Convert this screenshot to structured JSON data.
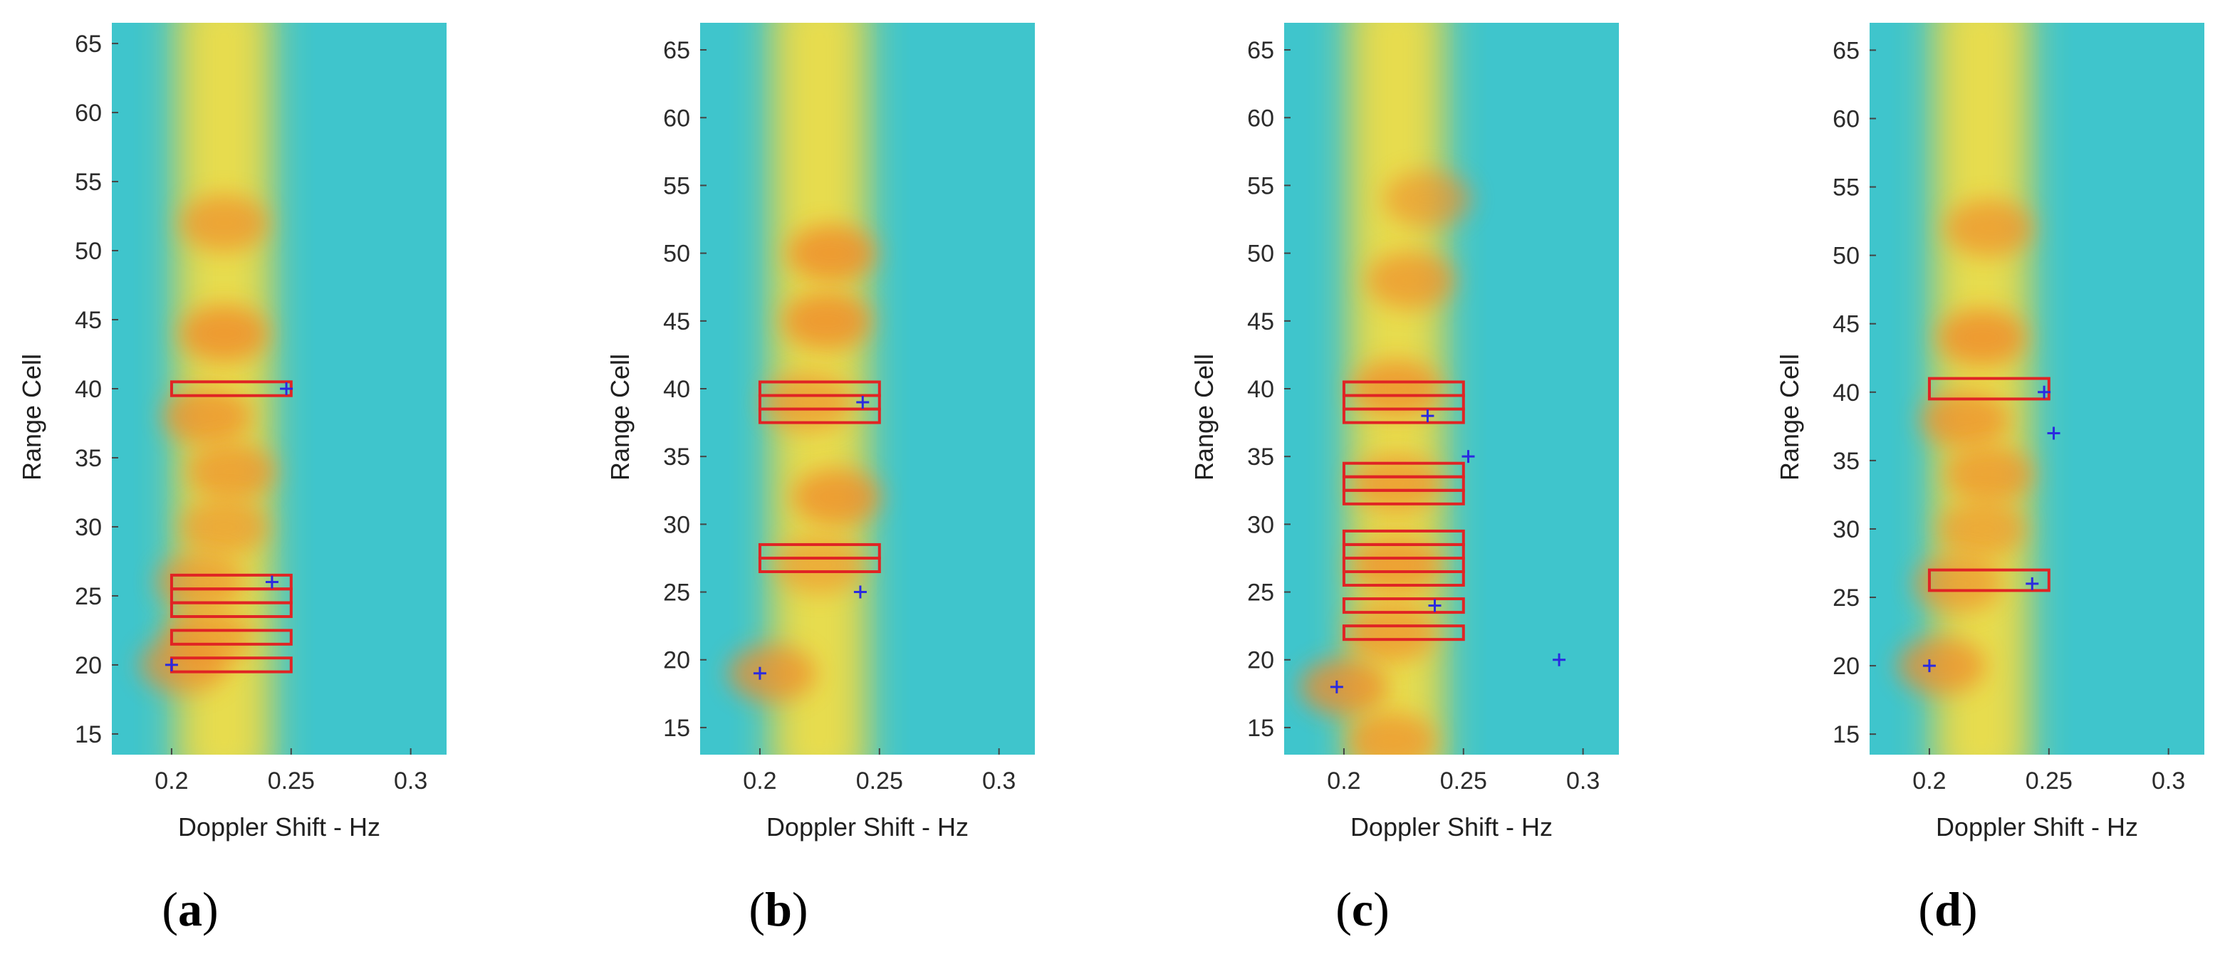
{
  "colors": {
    "background": "#3fc5cc",
    "hot": "#f08c2a",
    "warm": "#f3d63a",
    "box": "#e02424",
    "marker": "#2a2ae0"
  },
  "chart_data": [
    {
      "type": "heatmap",
      "panel_label": {
        "open": "(",
        "letter": "a",
        "close": ")"
      },
      "xlabel": "Doppler Shift - Hz",
      "ylabel": "Range Cell",
      "xlim": [
        0.175,
        0.315
      ],
      "ylim": [
        13.5,
        66.5
      ],
      "xticks": [
        0.2,
        0.25,
        0.3
      ],
      "xtick_labels": [
        "0.2",
        "0.25",
        "0.3"
      ],
      "yticks": [
        15,
        20,
        25,
        30,
        35,
        40,
        45,
        50,
        55,
        60,
        65
      ],
      "ytick_labels": [
        "15",
        "20",
        "25",
        "30",
        "35",
        "40",
        "45",
        "50",
        "55",
        "60",
        "65"
      ],
      "ridge_center": 0.222,
      "blobs": [
        {
          "x": 0.222,
          "y": 52,
          "strength": 0.85
        },
        {
          "x": 0.222,
          "y": 44,
          "strength": 1.0
        },
        {
          "x": 0.215,
          "y": 38,
          "strength": 0.9
        },
        {
          "x": 0.225,
          "y": 34,
          "strength": 0.85
        },
        {
          "x": 0.222,
          "y": 30,
          "strength": 0.75
        },
        {
          "x": 0.212,
          "y": 26,
          "strength": 0.8
        },
        {
          "x": 0.215,
          "y": 22,
          "strength": 0.8
        },
        {
          "x": 0.205,
          "y": 20,
          "strength": 0.85
        }
      ],
      "boxes": [
        {
          "x0": 0.2,
          "x1": 0.25,
          "y0": 39.5,
          "y1": 40.5
        },
        {
          "x0": 0.2,
          "x1": 0.25,
          "y0": 25.5,
          "y1": 26.5
        },
        {
          "x0": 0.2,
          "x1": 0.25,
          "y0": 24.5,
          "y1": 25.5
        },
        {
          "x0": 0.2,
          "x1": 0.25,
          "y0": 23.5,
          "y1": 24.5
        },
        {
          "x0": 0.2,
          "x1": 0.25,
          "y0": 21.5,
          "y1": 22.5
        },
        {
          "x0": 0.2,
          "x1": 0.25,
          "y0": 19.5,
          "y1": 20.5
        }
      ],
      "markers": [
        {
          "x": 0.248,
          "y": 40
        },
        {
          "x": 0.242,
          "y": 26
        },
        {
          "x": 0.2,
          "y": 20
        }
      ]
    },
    {
      "type": "heatmap",
      "panel_label": {
        "open": "(",
        "letter": "b",
        "close": ")"
      },
      "xlabel": "Doppler Shift - Hz",
      "ylabel": "Range Cell",
      "xlim": [
        0.175,
        0.315
      ],
      "ylim": [
        13,
        67
      ],
      "xticks": [
        0.2,
        0.25,
        0.3
      ],
      "xtick_labels": [
        "0.2",
        "0.25",
        "0.3"
      ],
      "yticks": [
        15,
        20,
        25,
        30,
        35,
        40,
        45,
        50,
        55,
        60,
        65
      ],
      "ytick_labels": [
        "15",
        "20",
        "25",
        "30",
        "35",
        "40",
        "45",
        "50",
        "55",
        "60",
        "65"
      ],
      "ridge_center": 0.225,
      "blobs": [
        {
          "x": 0.23,
          "y": 50,
          "strength": 1.0
        },
        {
          "x": 0.228,
          "y": 45,
          "strength": 1.0
        },
        {
          "x": 0.22,
          "y": 39,
          "strength": 0.8
        },
        {
          "x": 0.232,
          "y": 32,
          "strength": 0.95
        },
        {
          "x": 0.225,
          "y": 27,
          "strength": 0.7
        },
        {
          "x": 0.205,
          "y": 19,
          "strength": 0.9
        }
      ],
      "boxes": [
        {
          "x0": 0.2,
          "x1": 0.25,
          "y0": 39.5,
          "y1": 40.5
        },
        {
          "x0": 0.2,
          "x1": 0.25,
          "y0": 38.5,
          "y1": 39.5
        },
        {
          "x0": 0.2,
          "x1": 0.25,
          "y0": 37.5,
          "y1": 38.5
        },
        {
          "x0": 0.2,
          "x1": 0.25,
          "y0": 27.5,
          "y1": 28.5
        },
        {
          "x0": 0.2,
          "x1": 0.25,
          "y0": 26.5,
          "y1": 27.5
        }
      ],
      "markers": [
        {
          "x": 0.243,
          "y": 39
        },
        {
          "x": 0.242,
          "y": 25
        },
        {
          "x": 0.2,
          "y": 19
        }
      ]
    },
    {
      "type": "heatmap",
      "panel_label": {
        "open": "(",
        "letter": "c",
        "close": ")"
      },
      "xlabel": "Doppler Shift - Hz",
      "ylabel": "Range Cell",
      "xlim": [
        0.175,
        0.315
      ],
      "ylim": [
        13,
        67
      ],
      "xticks": [
        0.2,
        0.25,
        0.3
      ],
      "xtick_labels": [
        "0.2",
        "0.25",
        "0.3"
      ],
      "yticks": [
        15,
        20,
        25,
        30,
        35,
        40,
        45,
        50,
        55,
        60,
        65
      ],
      "ytick_labels": [
        "15",
        "20",
        "25",
        "30",
        "35",
        "40",
        "45",
        "50",
        "55",
        "60",
        "65"
      ],
      "ridge_center": 0.222,
      "blobs": [
        {
          "x": 0.235,
          "y": 54,
          "strength": 0.75
        },
        {
          "x": 0.228,
          "y": 48,
          "strength": 0.85
        },
        {
          "x": 0.222,
          "y": 40,
          "strength": 0.95
        },
        {
          "x": 0.222,
          "y": 33,
          "strength": 0.85
        },
        {
          "x": 0.222,
          "y": 27,
          "strength": 0.9
        },
        {
          "x": 0.22,
          "y": 22,
          "strength": 0.85
        },
        {
          "x": 0.2,
          "y": 18,
          "strength": 0.95
        },
        {
          "x": 0.22,
          "y": 14,
          "strength": 0.85
        }
      ],
      "boxes": [
        {
          "x0": 0.2,
          "x1": 0.25,
          "y0": 39.5,
          "y1": 40.5
        },
        {
          "x0": 0.2,
          "x1": 0.25,
          "y0": 38.5,
          "y1": 39.5
        },
        {
          "x0": 0.2,
          "x1": 0.25,
          "y0": 37.5,
          "y1": 38.5
        },
        {
          "x0": 0.2,
          "x1": 0.25,
          "y0": 33.5,
          "y1": 34.5
        },
        {
          "x0": 0.2,
          "x1": 0.25,
          "y0": 32.5,
          "y1": 33.5
        },
        {
          "x0": 0.2,
          "x1": 0.25,
          "y0": 31.5,
          "y1": 32.5
        },
        {
          "x0": 0.2,
          "x1": 0.25,
          "y0": 28.5,
          "y1": 29.5
        },
        {
          "x0": 0.2,
          "x1": 0.25,
          "y0": 27.5,
          "y1": 28.5
        },
        {
          "x0": 0.2,
          "x1": 0.25,
          "y0": 26.5,
          "y1": 27.5
        },
        {
          "x0": 0.2,
          "x1": 0.25,
          "y0": 25.5,
          "y1": 26.5
        },
        {
          "x0": 0.2,
          "x1": 0.25,
          "y0": 23.5,
          "y1": 24.5
        },
        {
          "x0": 0.2,
          "x1": 0.25,
          "y0": 21.5,
          "y1": 22.5
        }
      ],
      "markers": [
        {
          "x": 0.235,
          "y": 38
        },
        {
          "x": 0.252,
          "y": 35
        },
        {
          "x": 0.238,
          "y": 24
        },
        {
          "x": 0.29,
          "y": 20
        },
        {
          "x": 0.197,
          "y": 18
        }
      ]
    },
    {
      "type": "heatmap",
      "panel_label": {
        "open": "(",
        "letter": "d",
        "close": ")"
      },
      "xlabel": "Doppler Shift - Hz",
      "ylabel": "Range Cell",
      "xlim": [
        0.175,
        0.315
      ],
      "ylim": [
        13.5,
        67
      ],
      "xticks": [
        0.2,
        0.25,
        0.3
      ],
      "xtick_labels": [
        "0.2",
        "0.25",
        "0.3"
      ],
      "yticks": [
        15,
        20,
        25,
        30,
        35,
        40,
        45,
        50,
        55,
        60,
        65
      ],
      "ytick_labels": [
        "15",
        "20",
        "25",
        "30",
        "35",
        "40",
        "45",
        "50",
        "55",
        "60",
        "65"
      ],
      "ridge_center": 0.222,
      "blobs": [
        {
          "x": 0.225,
          "y": 52,
          "strength": 0.85
        },
        {
          "x": 0.222,
          "y": 44,
          "strength": 1.0
        },
        {
          "x": 0.215,
          "y": 38,
          "strength": 0.9
        },
        {
          "x": 0.225,
          "y": 34,
          "strength": 0.85
        },
        {
          "x": 0.222,
          "y": 30,
          "strength": 0.75
        },
        {
          "x": 0.212,
          "y": 26,
          "strength": 0.8
        },
        {
          "x": 0.205,
          "y": 20,
          "strength": 0.9
        }
      ],
      "boxes": [
        {
          "x0": 0.2,
          "x1": 0.25,
          "y0": 39.5,
          "y1": 41
        },
        {
          "x0": 0.2,
          "x1": 0.25,
          "y0": 25.5,
          "y1": 27
        }
      ],
      "markers": [
        {
          "x": 0.248,
          "y": 40
        },
        {
          "x": 0.252,
          "y": 37
        },
        {
          "x": 0.243,
          "y": 26
        },
        {
          "x": 0.2,
          "y": 20
        }
      ]
    }
  ]
}
